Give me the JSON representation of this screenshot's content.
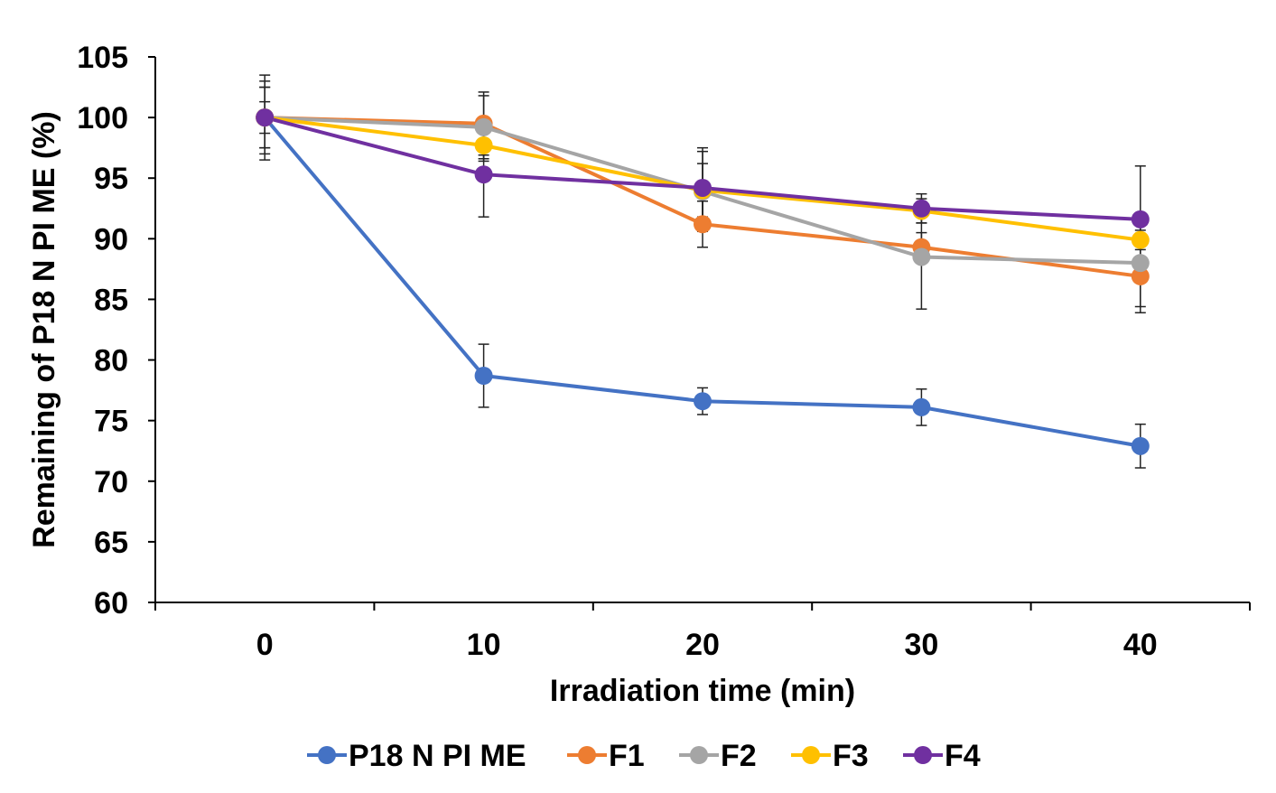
{
  "chart_data": {
    "type": "line",
    "title": "",
    "xlabel": "Irradiation time (min)",
    "ylabel": "Remaining of P18 N PI ME (%)",
    "categories": [
      "0",
      "10",
      "20",
      "30",
      "40"
    ],
    "ylim": [
      60,
      105
    ],
    "yticks": [
      60,
      65,
      70,
      75,
      80,
      85,
      90,
      95,
      100,
      105
    ],
    "grid": false,
    "legend_position": "bottom",
    "series": [
      {
        "name": "P18 N PI ME",
        "color": "#4472C4",
        "values": [
          100,
          78.7,
          76.6,
          76.1,
          72.9
        ],
        "errors": [
          3.5,
          2.6,
          1.1,
          1.5,
          1.8
        ]
      },
      {
        "name": "F1",
        "color": "#ED7D31",
        "values": [
          100,
          99.5,
          91.2,
          89.3,
          86.9
        ],
        "errors": [
          3.0,
          2.6,
          1.9,
          1.2,
          2.5
        ]
      },
      {
        "name": "F2",
        "color": "#A5A5A5",
        "values": [
          100,
          99.2,
          93.9,
          88.5,
          88.0
        ],
        "errors": [
          2.5,
          2.6,
          3.3,
          4.3,
          4.1
        ]
      },
      {
        "name": "F3",
        "color": "#FFC000",
        "values": [
          100,
          97.7,
          94.0,
          92.3,
          89.9
        ],
        "errors": [
          1.3,
          1.3,
          2.2,
          1.0,
          0.8
        ]
      },
      {
        "name": "F4",
        "color": "#7030A0",
        "values": [
          100,
          95.3,
          94.2,
          92.5,
          91.6
        ],
        "errors": [
          2.5,
          3.5,
          3.3,
          1.2,
          4.4
        ]
      }
    ]
  }
}
